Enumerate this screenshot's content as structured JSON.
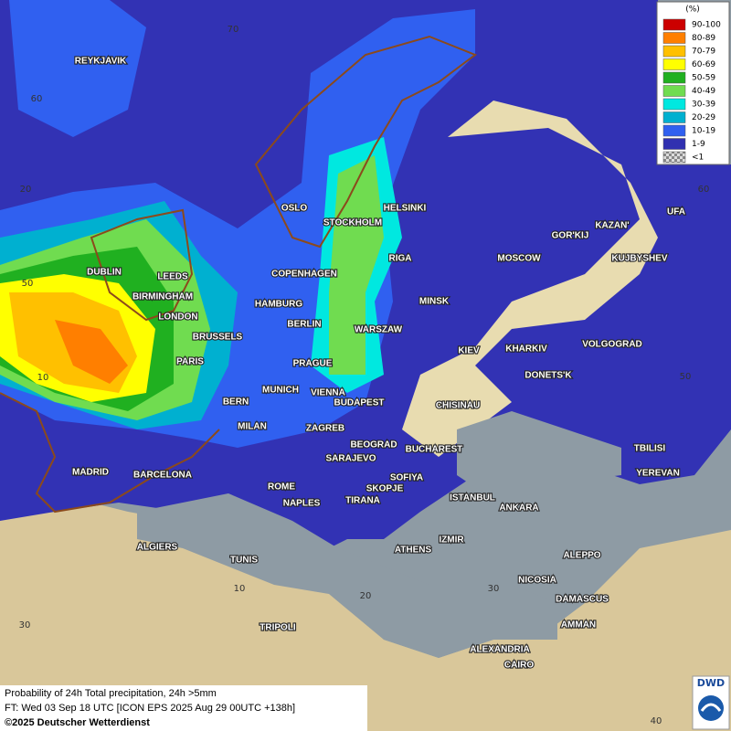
{
  "legend": {
    "title": "(%)",
    "items": [
      {
        "label": "90-100",
        "color": "#cc0000"
      },
      {
        "label": "80-89",
        "color": "#ff7f00"
      },
      {
        "label": "70-79",
        "color": "#ffc000"
      },
      {
        "label": "60-69",
        "color": "#ffff00"
      },
      {
        "label": "50-59",
        "color": "#20b020"
      },
      {
        "label": "40-49",
        "color": "#70dc50"
      },
      {
        "label": "30-39",
        "color": "#00e8e0"
      },
      {
        "label": "20-29",
        "color": "#00b0d0"
      },
      {
        "label": "10-19",
        "color": "#3060f0"
      },
      {
        "label": "1-9",
        "color": "#3030b0"
      },
      {
        "label": "<1",
        "color": "#b0b0b0"
      }
    ]
  },
  "grid_labels": [
    "70",
    "60",
    "20",
    "50",
    "10",
    "30",
    "60",
    "50",
    "10",
    "20",
    "30",
    "40"
  ],
  "cities": [
    "REYKJAVIK",
    "OSLO",
    "STOCKHOLM",
    "HELSINKI",
    "DUBLIN",
    "LEEDS",
    "BIRMINGHAM",
    "LONDON",
    "RIGA",
    "COPENHAGEN",
    "HAMBURG",
    "BERLIN",
    "MINSK",
    "MOSCOW",
    "GOR'KIJ",
    "KAZAN'",
    "UFA",
    "KUJBYSHEV",
    "WARSZAW",
    "BRUSSELS",
    "PARIS",
    "PRAGUE",
    "KIEV",
    "KHARKIV",
    "VOLGOGRAD",
    "DONETS'K",
    "MUNICH",
    "VIENNA",
    "BUDAPEST",
    "BERN",
    "CHISINAU",
    "MILAN",
    "ZAGREB",
    "BEOGRAD",
    "BUCHAREST",
    "TBILISI",
    "MADRID",
    "BARCELONA",
    "SARAJEVO",
    "SOFIYA",
    "YEREVAN",
    "ROME",
    "SKOPJE",
    "ISTANBUL",
    "ANKARA",
    "NAPLES",
    "TIRANA",
    "IZMIR",
    "ALGIERS",
    "ATHENS",
    "ALEPPO",
    "TUNIS",
    "NICOSIA",
    "DAMASCUS",
    "AMMAN",
    "TRIPOLI",
    "ALEXANDRIA",
    "CAIRO"
  ],
  "footer": {
    "line1": "Probability of 24h Total precipitation, 24h >5mm",
    "line2": "FT: Wed 03 Sep 18 UTC [ICON EPS 2025 Aug 29 00UTC +138h]",
    "copyright": "©2025 Deutscher Wetterdienst"
  },
  "logo": "DWD"
}
